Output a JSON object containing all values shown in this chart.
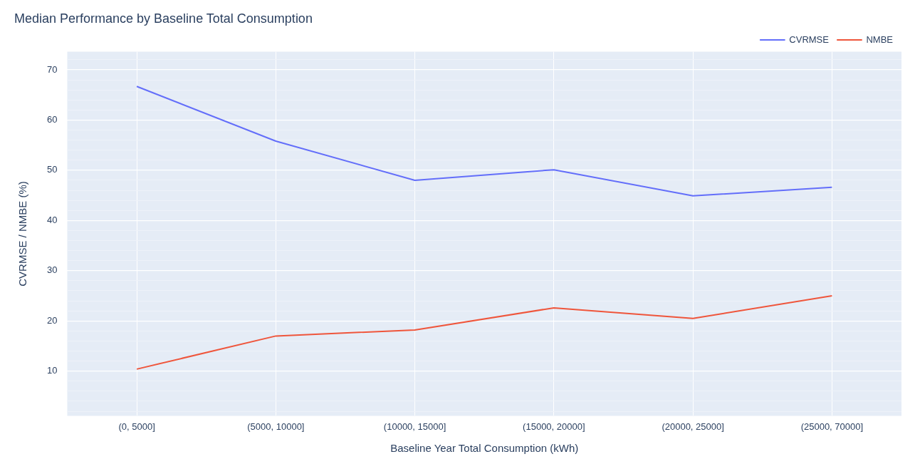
{
  "chart_data": {
    "type": "line",
    "title": "Median Performance by Baseline Total Consumption",
    "xlabel": "Baseline Year Total Consumption (kWh)",
    "ylabel": "CVRMSE / NMBE (%)",
    "categories": [
      "(0, 5000]",
      "(5000, 10000]",
      "(10000, 15000]",
      "(15000, 20000]",
      "(20000, 25000]",
      "(25000, 70000]"
    ],
    "series": [
      {
        "name": "CVRMSE",
        "color": "#636efa",
        "values": [
          66.7,
          55.8,
          48.0,
          50.1,
          44.9,
          46.6
        ]
      },
      {
        "name": "NMBE",
        "color": "#ef553b",
        "values": [
          10.4,
          17.0,
          18.2,
          22.6,
          20.5,
          25.0
        ]
      }
    ],
    "ylim": [
      1.1,
      73.6
    ],
    "yticks": [
      {
        "value": 2,
        "label": null
      },
      {
        "value": 4,
        "label": null
      },
      {
        "value": 6,
        "label": null
      },
      {
        "value": 8,
        "label": null
      },
      10,
      {
        "value": 12,
        "label": null
      },
      {
        "value": 14,
        "label": null
      },
      {
        "value": 16,
        "label": null
      },
      {
        "value": 18,
        "label": null
      },
      20,
      {
        "value": 22,
        "label": null
      },
      {
        "value": 24,
        "label": null
      },
      {
        "value": 26,
        "label": null
      },
      {
        "value": 28,
        "label": null
      },
      30,
      {
        "value": 32,
        "label": null
      },
      {
        "value": 34,
        "label": null
      },
      {
        "value": 36,
        "label": null
      },
      {
        "value": 38,
        "label": null
      },
      40,
      {
        "value": 42,
        "label": null
      },
      {
        "value": 44,
        "label": null
      },
      {
        "value": 46,
        "label": null
      },
      {
        "value": 48,
        "label": null
      },
      50,
      {
        "value": 52,
        "label": null
      },
      {
        "value": 54,
        "label": null
      },
      {
        "value": 56,
        "label": null
      },
      {
        "value": 58,
        "label": null
      },
      60,
      {
        "value": 62,
        "label": null
      },
      {
        "value": 64,
        "label": null
      },
      {
        "value": 66,
        "label": null
      },
      {
        "value": 68,
        "label": null
      },
      70,
      {
        "value": 72,
        "label": null
      }
    ],
    "grid": true,
    "legend": "top right",
    "marker": "none",
    "line_style": "solid"
  }
}
